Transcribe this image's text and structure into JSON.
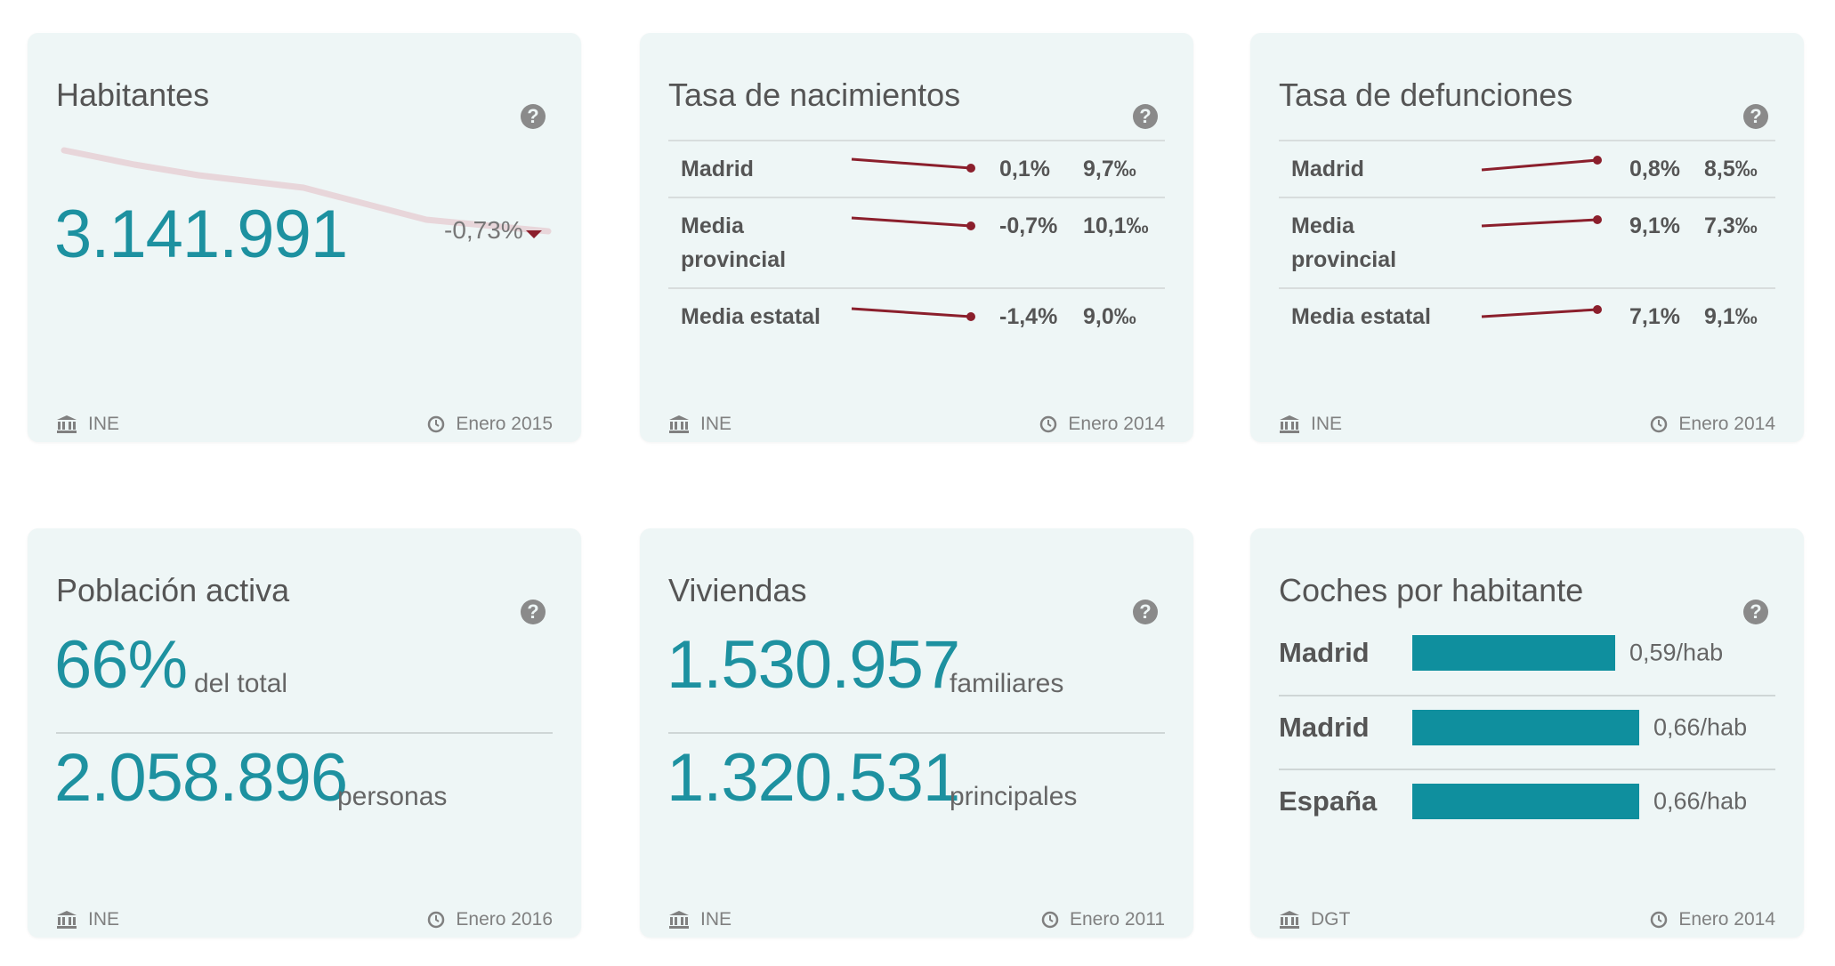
{
  "colors": {
    "card_bg": "#eef6f6",
    "accent_teal": "#1d91a0",
    "bar_teal": "#0f8f9e",
    "spark_red": "#8b1f2c",
    "trend_pink": "#e8d6da"
  },
  "icons": {
    "help": "?",
    "source": "bank-icon",
    "date": "clock-icon"
  },
  "cards": {
    "habitantes": {
      "title": "Habitantes",
      "value": "3.141.991",
      "change": "-0,73%",
      "source": "INE",
      "date": "Enero 2015"
    },
    "nacimientos": {
      "title": "Tasa de nacimientos",
      "rows": [
        {
          "name": "Madrid",
          "pct": "0,1%",
          "val": "9,7‰"
        },
        {
          "name_line1": "Media",
          "name_line2": "provincial",
          "pct": "-0,7%",
          "val": "10,1‰"
        },
        {
          "name": "Media estatal",
          "pct": "-1,4%",
          "val": "9,0‰"
        }
      ],
      "source": "INE",
      "date": "Enero 2014"
    },
    "defunciones": {
      "title": "Tasa de defunciones",
      "rows": [
        {
          "name": "Madrid",
          "pct": "0,8%",
          "val": "8,5‰"
        },
        {
          "name_line1": "Media",
          "name_line2": "provincial",
          "pct": "9,1%",
          "val": "7,3‰"
        },
        {
          "name": "Media estatal",
          "pct": "7,1%",
          "val": "9,1‰"
        }
      ],
      "source": "INE",
      "date": "Enero 2014"
    },
    "poblacion": {
      "title": "Población activa",
      "value1": "66%",
      "unit1": "del total",
      "value2": "2.058.896",
      "unit2": "personas",
      "source": "INE",
      "date": "Enero 2016"
    },
    "viviendas": {
      "title": "Viviendas",
      "value1": "1.530.957",
      "unit1": "familiares",
      "value2": "1.320.531",
      "unit2": "principales",
      "source": "INE",
      "date": "Enero 2011"
    },
    "coches": {
      "title": "Coches por habitante",
      "bars": [
        {
          "name": "Madrid",
          "value": 0.59,
          "label": "0,59/hab"
        },
        {
          "name": "Madrid",
          "value": 0.66,
          "label": "0,66/hab"
        },
        {
          "name": "España",
          "value": 0.66,
          "label": "0,66/hab"
        }
      ],
      "source": "DGT",
      "date": "Enero 2014"
    }
  }
}
